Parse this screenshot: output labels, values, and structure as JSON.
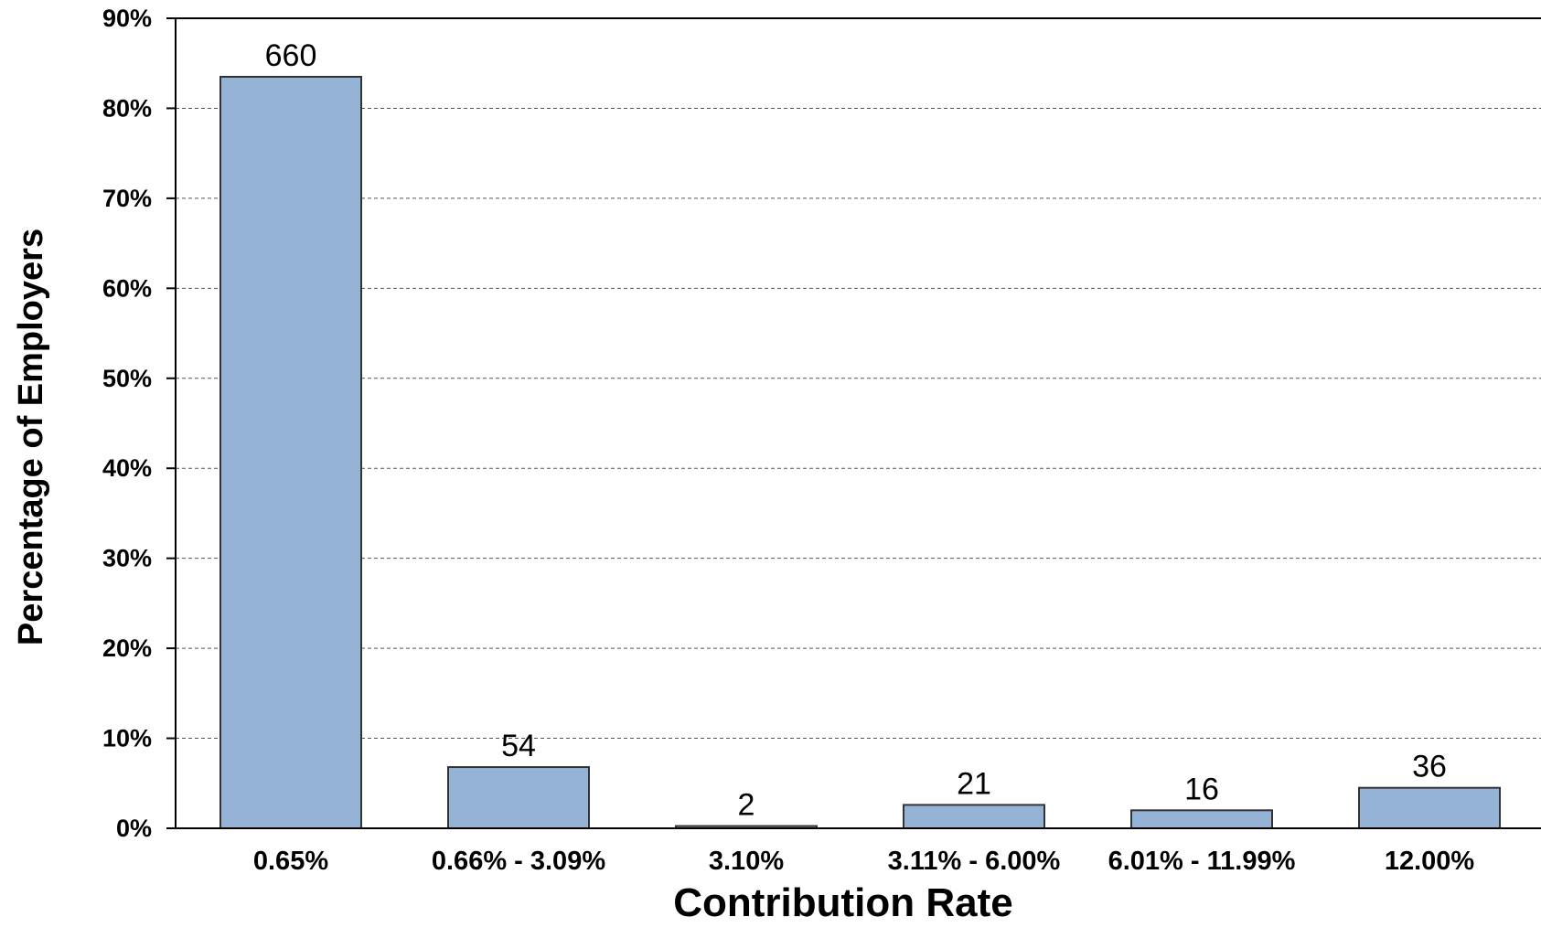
{
  "chart_data": {
    "type": "bar",
    "xlabel": "Contribution Rate",
    "ylabel": "Percentage of Employers",
    "ylim": [
      0,
      90
    ],
    "ytick_step": 10,
    "ytick_suffix": "%",
    "grid": true,
    "categories": [
      "0.65%",
      "0.66% - 3.09%",
      "3.10%",
      "3.11% - 6.00%",
      "6.01% - 11.99%",
      "12.00%"
    ],
    "values": [
      83.5,
      6.8,
      0.25,
      2.6,
      2.0,
      4.5
    ],
    "data_labels": [
      "660",
      "54",
      "2",
      "21",
      "16",
      "36"
    ],
    "colors": {
      "bar_fill": "#95B3D7",
      "bar_stroke": "#333333"
    }
  }
}
